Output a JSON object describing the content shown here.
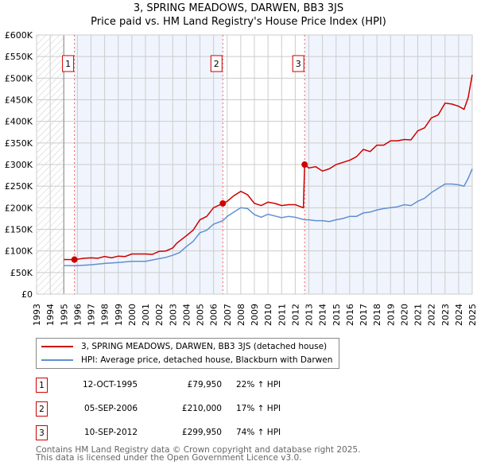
{
  "title": "3, SPRING MEADOWS, DARWEN, BB3 3JS",
  "subtitle": "Price paid vs. HM Land Registry's House Price Index (HPI)",
  "chart_data": {
    "type": "line",
    "xlim": [
      1993,
      2025
    ],
    "ylim": [
      0,
      600000
    ],
    "y_ticks": [
      0,
      50000,
      100000,
      150000,
      200000,
      250000,
      300000,
      350000,
      400000,
      450000,
      500000,
      550000,
      600000
    ],
    "y_tick_labels": [
      "£0",
      "£50K",
      "£100K",
      "£150K",
      "£200K",
      "£250K",
      "£300K",
      "£350K",
      "£400K",
      "£450K",
      "£500K",
      "£550K",
      "£600K"
    ],
    "x_ticks": [
      "1993",
      "1994",
      "1995",
      "1996",
      "1997",
      "1998",
      "1999",
      "2000",
      "2001",
      "2002",
      "2003",
      "2004",
      "2005",
      "2006",
      "2007",
      "2008",
      "2009",
      "2010",
      "2011",
      "2012",
      "2013",
      "2014",
      "2015",
      "2016",
      "2017",
      "2018",
      "2019",
      "2020",
      "2021",
      "2022",
      "2023",
      "2024",
      "2025"
    ],
    "grid": true,
    "series": [
      {
        "name": "3, SPRING MEADOWS, DARWEN, BB3 3JS (detached house)",
        "color": "#cc0000",
        "x": [
          1995,
          1995.78,
          1996.5,
          1997,
          1997.5,
          1998,
          1998.5,
          1999,
          1999.5,
          2000,
          2001,
          2001.5,
          2002,
          2002.5,
          2003,
          2003.3,
          2004,
          2004.5,
          2005,
          2005.5,
          2006,
          2006.68,
          2007,
          2007.5,
          2008,
          2008.5,
          2009,
          2009.5,
          2010,
          2010.5,
          2011,
          2011.5,
          2012,
          2012.6,
          2012.69,
          2013,
          2013.5,
          2014,
          2014.5,
          2015,
          2015.5,
          2016,
          2016.5,
          2017,
          2017.5,
          2018,
          2018.5,
          2019,
          2019.5,
          2020,
          2020.5,
          2021,
          2021.5,
          2022,
          2022.5,
          2023,
          2023.5,
          2024,
          2024.4,
          2024.7,
          2025
        ],
        "y": [
          80000,
          79950,
          83000,
          84000,
          83000,
          87000,
          84000,
          88000,
          87000,
          93000,
          93000,
          92000,
          99000,
          100000,
          107000,
          118000,
          135000,
          148000,
          172000,
          180000,
          200000,
          210000,
          215000,
          228000,
          238000,
          230000,
          210000,
          205000,
          213000,
          210000,
          205000,
          207000,
          207000,
          200000,
          299950,
          292000,
          295000,
          285000,
          290000,
          300000,
          305000,
          310000,
          318000,
          335000,
          330000,
          345000,
          345000,
          355000,
          355000,
          358000,
          357000,
          378000,
          385000,
          408000,
          415000,
          442000,
          440000,
          435000,
          428000,
          455000,
          508000
        ]
      },
      {
        "name": "HPI: Average price, detached house, Blackburn with Darwen",
        "color": "#6090d0",
        "x": [
          1995,
          1996,
          1997,
          1998,
          1999,
          2000,
          2001,
          2002,
          2002.5,
          2003,
          2003.5,
          2004,
          2004.5,
          2005,
          2005.5,
          2006,
          2006.68,
          2007,
          2007.5,
          2008,
          2008.5,
          2009,
          2009.5,
          2010,
          2010.5,
          2011,
          2011.5,
          2012,
          2012.69,
          2013,
          2013.5,
          2014,
          2014.5,
          2015,
          2015.5,
          2016,
          2016.5,
          2017,
          2017.5,
          2018,
          2018.5,
          2019,
          2019.5,
          2020,
          2020.5,
          2021,
          2021.5,
          2022,
          2022.5,
          2023,
          2023.5,
          2024,
          2024.4,
          2024.7,
          2025
        ],
        "y": [
          66000,
          66000,
          68000,
          71000,
          73000,
          76000,
          76000,
          82000,
          85000,
          90000,
          96000,
          110000,
          122000,
          142000,
          148000,
          162000,
          170000,
          180000,
          190000,
          200000,
          198000,
          184000,
          178000,
          185000,
          181000,
          177000,
          180000,
          178000,
          172000,
          172000,
          170000,
          170000,
          168000,
          172000,
          175000,
          180000,
          180000,
          188000,
          190000,
          195000,
          198000,
          200000,
          202000,
          207000,
          205000,
          215000,
          222000,
          235000,
          245000,
          255000,
          255000,
          253000,
          250000,
          268000,
          290000
        ]
      }
    ],
    "sales": [
      {
        "label": "1",
        "x": 1995.78,
        "y": 79950
      },
      {
        "label": "2",
        "x": 2006.68,
        "y": 210000
      },
      {
        "label": "3",
        "x": 2012.69,
        "y": 299950
      }
    ]
  },
  "legend": [
    {
      "label": "3, SPRING MEADOWS, DARWEN, BB3 3JS (detached house)",
      "color": "#cc0000"
    },
    {
      "label": "HPI: Average price, detached house, Blackburn with Darwen",
      "color": "#6090d0"
    }
  ],
  "table": [
    {
      "num": "1",
      "date": "12-OCT-1995",
      "price": "£79,950",
      "hpi": "22% ↑ HPI"
    },
    {
      "num": "2",
      "date": "05-SEP-2006",
      "price": "£210,000",
      "hpi": "17% ↑ HPI"
    },
    {
      "num": "3",
      "date": "10-SEP-2012",
      "price": "£299,950",
      "hpi": "74% ↑ HPI"
    }
  ],
  "footer": {
    "line1": "Contains HM Land Registry data © Crown copyright and database right 2025.",
    "line2": "This data is licensed under the Open Government Licence v3.0."
  }
}
